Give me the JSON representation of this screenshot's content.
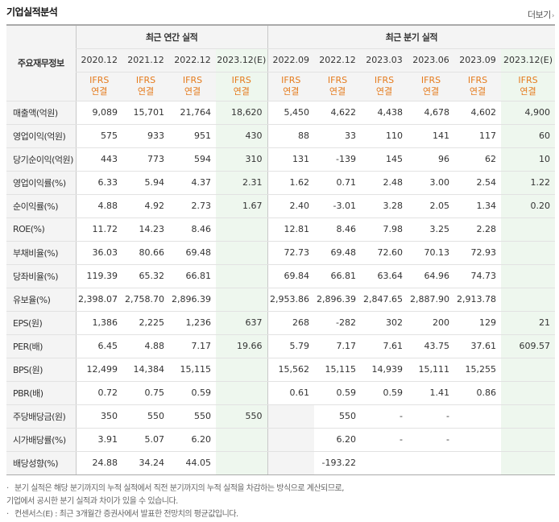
{
  "header": {
    "title": "기업실적분석",
    "more_label": "더보기"
  },
  "table": {
    "row_header": "주요재무정보",
    "annual_title": "최근 연간 실적",
    "quarter_title": "최근 분기 실적",
    "periods": [
      "2020.12",
      "2021.12",
      "2022.12",
      "2023.12(E)",
      "2022.09",
      "2022.12",
      "2023.03",
      "2023.06",
      "2023.09",
      "2023.12(E)"
    ],
    "ifrs_top": "IFRS",
    "ifrs_bottom": "연결",
    "rows": [
      {
        "label": "매출액(억원)",
        "values": [
          "9,089",
          "15,701",
          "21,764",
          "18,620",
          "5,450",
          "4,622",
          "4,438",
          "4,678",
          "4,602",
          "4,900"
        ]
      },
      {
        "label": "영업이익(억원)",
        "values": [
          "575",
          "933",
          "951",
          "430",
          "88",
          "33",
          "110",
          "141",
          "117",
          "60"
        ]
      },
      {
        "label": "당기순이익(억원)",
        "values": [
          "443",
          "773",
          "594",
          "310",
          "131",
          "-139",
          "145",
          "96",
          "62",
          "10"
        ]
      },
      {
        "label": "영업이익률(%)",
        "values": [
          "6.33",
          "5.94",
          "4.37",
          "2.31",
          "1.62",
          "0.71",
          "2.48",
          "3.00",
          "2.54",
          "1.22"
        ]
      },
      {
        "label": "순이익률(%)",
        "values": [
          "4.88",
          "4.92",
          "2.73",
          "1.67",
          "2.40",
          "-3.01",
          "3.28",
          "2.05",
          "1.34",
          "0.20"
        ]
      },
      {
        "label": "ROE(%)",
        "values": [
          "11.72",
          "14.23",
          "8.46",
          "",
          "12.81",
          "8.46",
          "7.98",
          "3.25",
          "2.28",
          ""
        ]
      },
      {
        "label": "부채비율(%)",
        "values": [
          "36.03",
          "80.66",
          "69.48",
          "",
          "72.73",
          "69.48",
          "72.60",
          "70.13",
          "72.93",
          ""
        ]
      },
      {
        "label": "당좌비율(%)",
        "values": [
          "119.39",
          "65.32",
          "66.81",
          "",
          "69.84",
          "66.81",
          "63.64",
          "64.96",
          "74.73",
          ""
        ]
      },
      {
        "label": "유보율(%)",
        "values": [
          "2,398.07",
          "2,758.70",
          "2,896.39",
          "",
          "2,953.86",
          "2,896.39",
          "2,847.65",
          "2,887.90",
          "2,913.78",
          ""
        ]
      },
      {
        "label": "EPS(원)",
        "values": [
          "1,386",
          "2,225",
          "1,236",
          "637",
          "268",
          "-282",
          "302",
          "200",
          "129",
          "21"
        ]
      },
      {
        "label": "PER(배)",
        "values": [
          "6.45",
          "4.88",
          "7.17",
          "19.66",
          "5.79",
          "7.17",
          "7.61",
          "43.75",
          "37.61",
          "609.57"
        ]
      },
      {
        "label": "BPS(원)",
        "values": [
          "12,499",
          "14,384",
          "15,115",
          "",
          "15,562",
          "15,115",
          "14,939",
          "15,111",
          "15,255",
          ""
        ]
      },
      {
        "label": "PBR(배)",
        "values": [
          "0.72",
          "0.75",
          "0.59",
          "",
          "0.61",
          "0.59",
          "0.59",
          "1.41",
          "0.86",
          ""
        ]
      },
      {
        "label": "주당배당금(원)",
        "values": [
          "350",
          "550",
          "550",
          "550",
          "",
          "550",
          "-",
          "-",
          "",
          ""
        ]
      },
      {
        "label": "시가배당률(%)",
        "values": [
          "3.91",
          "5.07",
          "6.20",
          "",
          "",
          "6.20",
          "-",
          "-",
          "",
          ""
        ]
      },
      {
        "label": "배당성향(%)",
        "values": [
          "24.88",
          "34.24",
          "44.05",
          "",
          "",
          "-193.22",
          "",
          "",
          "",
          ""
        ]
      }
    ]
  },
  "notes": {
    "n1_line1": "분기 실적은 해당 분기까지의 누적 실적에서 직전 분기까지의 누적 실적을 차감하는 방식으로 계산되므로,",
    "n1_line2": "기업에서 공시한 분기 실적과 차이가 있을 수 있습니다.",
    "n2": "컨센서스(E) : 최근 3개월간 증권사에서 발표한 전망치의 평균값입니다."
  },
  "colors": {
    "ifrs": "#e57b1d",
    "negative": "#e8272b",
    "estimate_bg": "#eef7ee"
  }
}
